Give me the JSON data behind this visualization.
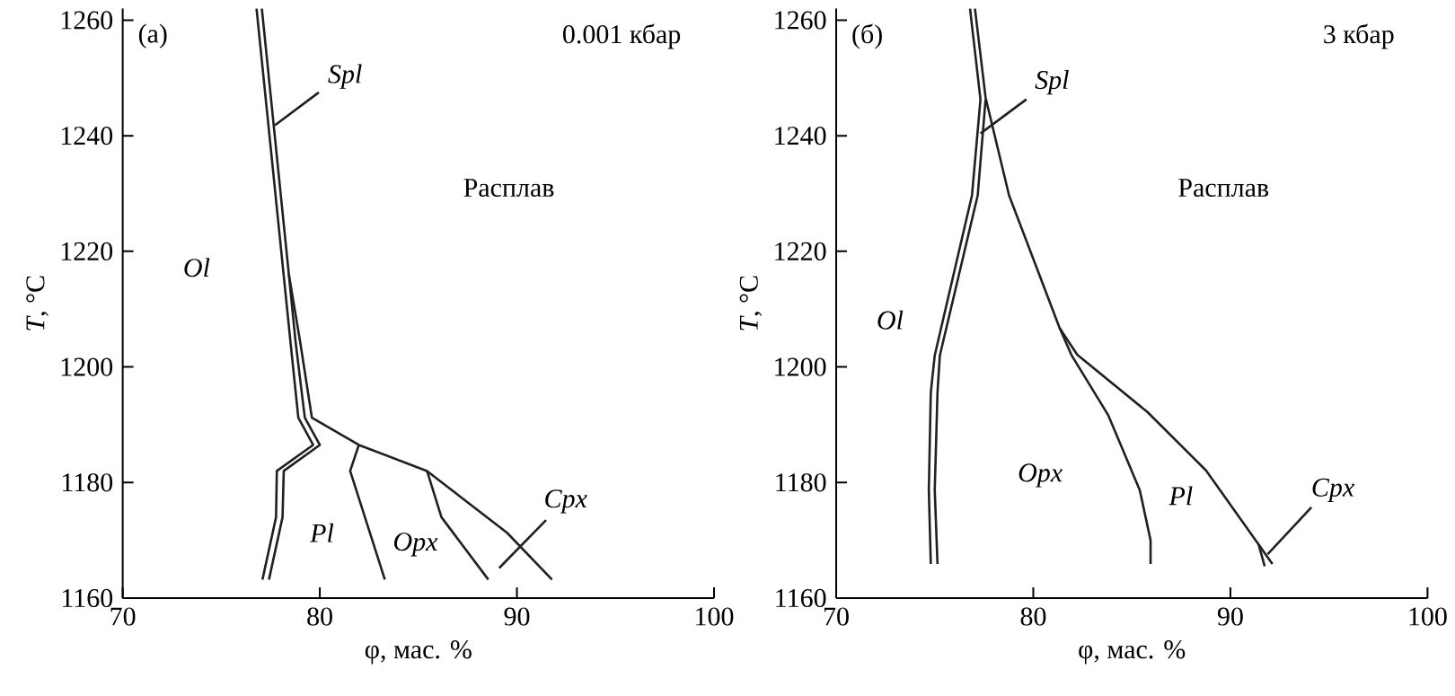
{
  "chart_data": [
    {
      "type": "line",
      "title": "(а)",
      "subtitle": "0.001 кбар",
      "xlabel": "φ, мас. %",
      "ylabel": "*T*, °C",
      "xlim": [
        70,
        100
      ],
      "ylim": [
        1160,
        1262
      ],
      "xticks": [
        70,
        80,
        90,
        100
      ],
      "yticks": [
        1160,
        1180,
        1200,
        1220,
        1240,
        1260
      ],
      "marker": "none",
      "grid": false,
      "series": [
        {
          "color": "#231f20",
          "x": [
            76.79,
            78.51,
            78.91,
            79.66,
            77.82,
            77.78,
            77.09
          ],
          "values": [
            1262,
            1204.4,
            1191.2,
            1186.5,
            1182,
            1174,
            1163.2
          ]
        },
        {
          "color": "#231f20",
          "x": [
            78.43,
            78.77,
            79.24,
            80.0,
            78.17,
            78.11,
            77.42
          ],
          "values": [
            1216,
            1204.4,
            1191.2,
            1186.5,
            1182,
            1174,
            1163.2
          ]
        },
        {
          "color": "#231f20",
          "x": [
            77.06,
            78.43,
            79.0,
            79.6,
            81.98,
            85.44,
            89.5,
            91.78
          ],
          "values": [
            1262,
            1216,
            1204.4,
            1191.2,
            1186.5,
            1182,
            1171.3,
            1163.2
          ]
        },
        {
          "color": "#231f20",
          "x": [
            81.98,
            81.54,
            83.3
          ],
          "values": [
            1186.5,
            1182,
            1163.2
          ]
        },
        {
          "color": "#231f20",
          "x": [
            85.44,
            86.17,
            88.55
          ],
          "values": [
            1182,
            1174,
            1163.2
          ]
        },
        {
          "color": "#231f20",
          "x": [
            77.72,
            79.95
          ],
          "values": [
            1241.8,
            1247.5
          ]
        },
        {
          "color": "#231f20",
          "x": [
            89.1,
            91.48
          ],
          "values": [
            1165.2,
            1173.5
          ]
        }
      ],
      "annotations": [
        "*Spl*",
        "Расплав",
        "*Ol*",
        "*Pl*",
        "*Opx*",
        "*Cpx*"
      ]
    },
    {
      "type": "line",
      "title": "(б)",
      "subtitle": "3 кбар",
      "xlabel": "φ, мас. %",
      "ylabel": "*T*, °C",
      "xlim": [
        70,
        100
      ],
      "ylim": [
        1160,
        1262
      ],
      "xticks": [
        70,
        80,
        90,
        100
      ],
      "yticks": [
        1160,
        1180,
        1200,
        1220,
        1240,
        1260
      ],
      "marker": "none",
      "grid": false,
      "series": [
        {
          "color": "#231f20",
          "x": [
            76.79,
            77.32,
            76.89,
            75.0,
            74.8,
            74.7,
            74.8
          ],
          "values": [
            1262,
            1246.3,
            1229.7,
            1202,
            1195.6,
            1178.7,
            1165.9
          ]
        },
        {
          "color": "#231f20",
          "x": [
            77.58,
            77.18,
            75.26,
            75.14,
            75.0,
            75.14
          ],
          "values": [
            1246.3,
            1229.7,
            1202,
            1195.6,
            1178.7,
            1165.9
          ]
        },
        {
          "color": "#231f20",
          "x": [
            77.04,
            77.58,
            78.77,
            81.34,
            82.23,
            85.79,
            88.76,
            91.43,
            92.13
          ],
          "values": [
            1262,
            1246.6,
            1229.7,
            1206.7,
            1202.1,
            1192.2,
            1182.1,
            1169.3,
            1165.9
          ]
        },
        {
          "color": "#231f20",
          "x": [
            81.34,
            81.93,
            83.81,
            85.4,
            85.95,
            85.95
          ],
          "values": [
            1206.7,
            1202.1,
            1191.6,
            1178.7,
            1170,
            1165.9
          ]
        },
        {
          "color": "#231f20",
          "x": [
            91.43,
            91.74
          ],
          "values": [
            1169.3,
            1165.5
          ]
        },
        {
          "color": "#231f20",
          "x": [
            77.32,
            79.65
          ],
          "values": [
            1240.4,
            1246.3
          ]
        },
        {
          "color": "#231f20",
          "x": [
            91.89,
            94.11
          ],
          "values": [
            1167.6,
            1175.7
          ]
        }
      ],
      "annotations": [
        "*Spl*",
        "Расплав",
        "*Ol*",
        "*Opx*",
        "*Pl*",
        "*Cpx*"
      ]
    }
  ]
}
